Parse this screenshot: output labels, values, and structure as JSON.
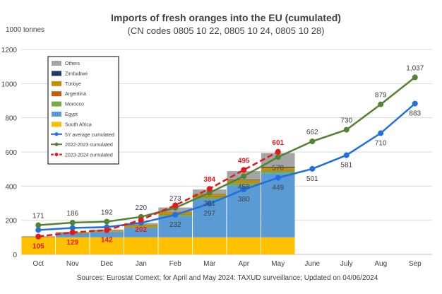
{
  "chart_data": {
    "type": "bar",
    "title": "Imports of fresh oranges into the EU (cumulated)",
    "subtitle": "(CN codes 0805 10 22, 0805 10 24, 0805 10 28)",
    "ylabel": "1000 tonnes",
    "ylim": [
      0,
      1200
    ],
    "yticks": [
      "0",
      "200",
      "400",
      "600",
      "800",
      "1000",
      "1200"
    ],
    "grid": true,
    "legend_position": "top-left",
    "source": "Sources: Eurostat Comext; for April and May 2024: TAXUD surveillance; Updated on 04/06/2024",
    "categories": [
      "Oct",
      "Nov",
      "Dec",
      "Jan",
      "Feb",
      "Mar",
      "Apr",
      "May",
      "June",
      "July",
      "Aug",
      "Sep"
    ],
    "stacked_series": [
      {
        "name": "South Africa",
        "color": "#FFC000",
        "values": [
          100,
          100,
          100,
          100,
          100,
          100,
          100,
          100,
          null,
          null,
          null,
          null
        ]
      },
      {
        "name": "Egypt",
        "color": "#5B9BD5",
        "values": [
          0,
          20,
          30,
          55,
          125,
          225,
          305,
          375,
          null,
          null,
          null,
          null
        ]
      },
      {
        "name": "Morocco",
        "color": "#70AD47",
        "values": [
          0,
          2,
          3,
          5,
          8,
          10,
          12,
          14,
          null,
          null,
          null,
          null
        ]
      },
      {
        "name": "Argentina",
        "color": "#C55A11",
        "values": [
          2,
          2,
          2,
          3,
          3,
          4,
          4,
          5,
          null,
          null,
          null,
          null
        ]
      },
      {
        "name": "Türkiye",
        "color": "#BF9000",
        "values": [
          2,
          3,
          4,
          10,
          13,
          14,
          14,
          15,
          null,
          null,
          null,
          null
        ]
      },
      {
        "name": "Zimbabwe",
        "color": "#203864",
        "values": [
          0,
          0,
          1,
          1,
          1,
          2,
          3,
          5,
          null,
          null,
          null,
          null
        ]
      },
      {
        "name": "Others",
        "color": "#A5A5A5",
        "values": [
          3,
          5,
          6,
          10,
          25,
          25,
          50,
          80,
          null,
          null,
          null,
          null
        ]
      }
    ],
    "line_series": [
      {
        "name": "5Y average cumulated",
        "color": "#1F6FE0",
        "dashed": false,
        "values": [
          143,
          155,
          160,
          185,
          232,
          297,
          380,
          449,
          501,
          581,
          710,
          883
        ],
        "labels": [
          "",
          "",
          "",
          "",
          "232",
          "297",
          "380",
          "449",
          "501",
          "581",
          "710",
          "883"
        ]
      },
      {
        "name": "2022-2023 cumulated",
        "color": "#548235",
        "dashed": false,
        "values": [
          171,
          186,
          192,
          220,
          273,
          361,
          458,
          570,
          662,
          730,
          879,
          1037
        ],
        "labels": [
          "171",
          "186",
          "192",
          "220",
          "273",
          "361",
          "458",
          "570",
          "662",
          "730",
          "879",
          "1,037"
        ]
      },
      {
        "name": "2023-2024 cumulated",
        "color": "#E31A1C",
        "dashed": true,
        "values": [
          105,
          129,
          142,
          202,
          288,
          384,
          495,
          601,
          null,
          null,
          null,
          null
        ],
        "labels": [
          "105",
          "129",
          "142",
          "202",
          "",
          "384",
          "495",
          "601",
          "",
          "",
          "",
          ""
        ]
      }
    ]
  }
}
